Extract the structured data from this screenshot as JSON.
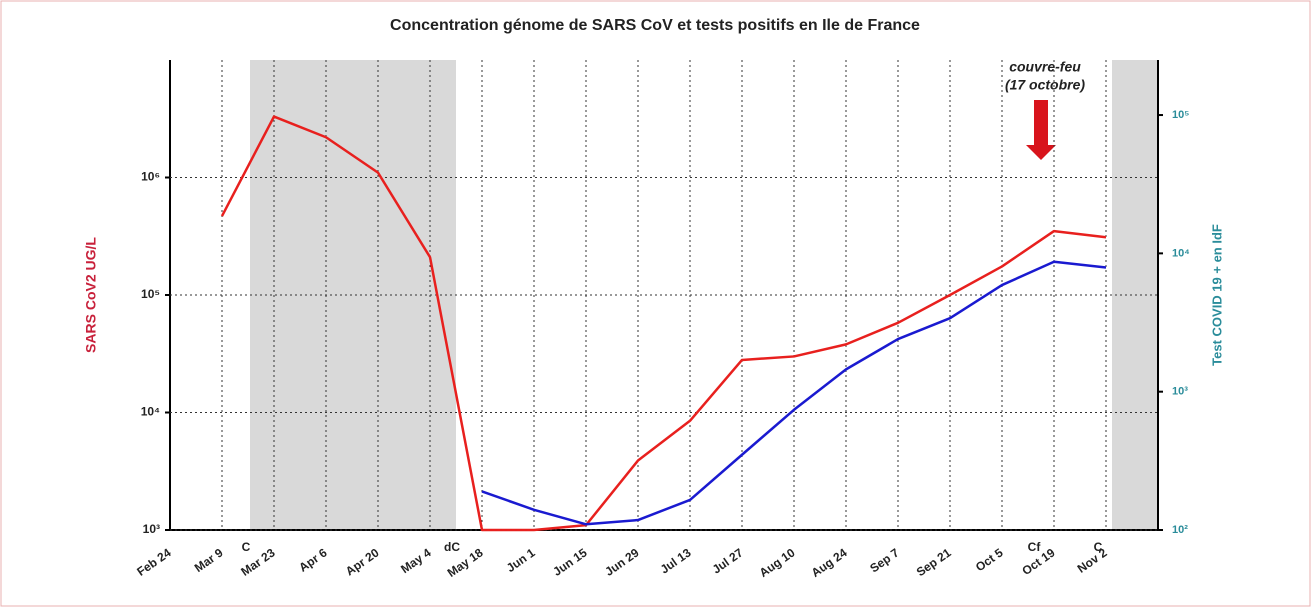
{
  "chart_data": {
    "type": "line",
    "title": "Concentration génome de SARS CoV et tests positifs en Ile de France",
    "y_label": "SARS CoV2  UG/L",
    "y2_label": "Test COVID 19 + en IdF",
    "categories": [
      "Feb 24",
      "Mar 9",
      "Mar 23",
      "Apr 6",
      "Apr 20",
      "May 4",
      "May 18",
      "Jun 1",
      "Jun 15",
      "Jun 29",
      "Jul 13",
      "Jul 27",
      "Aug 10",
      "Aug 24",
      "Sep 7",
      "Sep 21",
      "Oct 5",
      "Oct 19",
      "Nov 2"
    ],
    "series": [
      {
        "name": "SARS CoV2 UG/L",
        "color": "#e8201e",
        "axis": "y",
        "values": [
          null,
          470000,
          3300000,
          2200000,
          1100000,
          210000,
          1000,
          1000,
          1100,
          3900,
          8500,
          28000,
          30000,
          38000,
          58000,
          100000,
          175000,
          350000,
          310000
        ]
      },
      {
        "name": "Test COVID 19 +",
        "color": "#1a1ad0",
        "axis": "y2",
        "values": [
          null,
          null,
          null,
          null,
          null,
          null,
          190,
          140,
          110,
          118,
          165,
          350,
          740,
          1450,
          2400,
          3400,
          5900,
          8700,
          7900
        ]
      }
    ],
    "log_scale": true,
    "grid": true,
    "ylim": [
      1000,
      10000000
    ],
    "yticks": [
      {
        "value": 1000,
        "label": "10³"
      },
      {
        "value": 10000,
        "label": "10⁴"
      },
      {
        "value": 100000,
        "label": "10⁵"
      },
      {
        "value": 1000000,
        "label": "10⁶"
      }
    ],
    "y2lim": [
      100,
      250000
    ],
    "y2ticks": [
      {
        "value": 100,
        "label": "10²"
      },
      {
        "value": 1000,
        "label": "10³"
      },
      {
        "value": 10000,
        "label": "10⁴"
      },
      {
        "value": 100000,
        "label": "10⁵"
      }
    ],
    "annotations": [
      "couvre-feu",
      "(17 octobre)",
      "C",
      "dC",
      "Cf",
      "C"
    ]
  }
}
